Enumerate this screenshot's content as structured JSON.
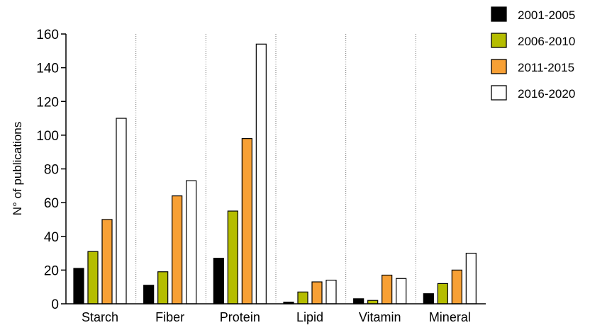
{
  "chart_data": {
    "type": "bar",
    "title": "",
    "xlabel": "",
    "ylabel": "N° of publications",
    "ylim": [
      0,
      160
    ],
    "yticks": [
      0,
      20,
      40,
      60,
      80,
      100,
      120,
      140,
      160
    ],
    "categories": [
      "Starch",
      "Fiber",
      "Protein",
      "Lipid",
      "Vitamin",
      "Mineral"
    ],
    "series": [
      {
        "name": "2001-2005",
        "color": "#000000",
        "values": [
          21,
          11,
          27,
          1,
          3,
          6
        ]
      },
      {
        "name": "2006-2010",
        "color": "#b5bd00",
        "values": [
          31,
          19,
          55,
          7,
          2,
          12
        ]
      },
      {
        "name": "2011-2015",
        "color": "#f7a035",
        "values": [
          50,
          64,
          98,
          13,
          17,
          20
        ]
      },
      {
        "name": "2016-2020",
        "color": "#ffffff",
        "values": [
          110,
          73,
          154,
          14,
          15,
          30
        ]
      }
    ],
    "legend_position": "top-right",
    "grid": false,
    "category_separators": "dotted"
  }
}
